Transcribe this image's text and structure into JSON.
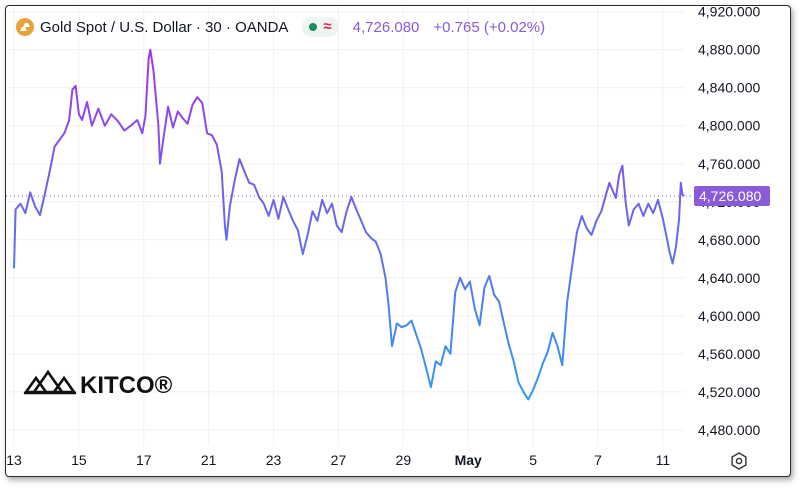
{
  "legend": {
    "symbol_title": "Gold Spot / U.S. Dollar · 30 · OANDA",
    "last_price": "4,726.080",
    "change": "+0.765 (+0.02%)"
  },
  "icons": {
    "symbol": "gold-bars-icon",
    "market_open": "green-dot-icon",
    "delayed": "wave-icon",
    "settings": "gear-icon"
  },
  "branding": {
    "logo_text": "KITCO®"
  },
  "chart_data": {
    "type": "line",
    "symbol": "Gold Spot / U.S. Dollar",
    "interval": "30",
    "y_axis": {
      "position": "right",
      "ticks": [
        "4,480.000",
        "4,520.000",
        "4,560.000",
        "4,600.000",
        "4,640.000",
        "4,680.000",
        "4,720.000",
        "4,760.000",
        "4,800.000",
        "4,840.000",
        "4,880.000",
        "4,920.000"
      ],
      "range": [
        4463,
        4926
      ]
    },
    "x_axis": {
      "ticks": [
        {
          "label": "13",
          "t": 0
        },
        {
          "label": "15",
          "t": 2
        },
        {
          "label": "17",
          "t": 4
        },
        {
          "label": "21",
          "t": 6
        },
        {
          "label": "23",
          "t": 8
        },
        {
          "label": "27",
          "t": 10
        },
        {
          "label": "29",
          "t": 12
        },
        {
          "label": "May",
          "t": 14
        },
        {
          "label": "5",
          "t": 16
        },
        {
          "label": "7",
          "t": 18
        },
        {
          "label": "11",
          "t": 20
        }
      ],
      "range": [
        0,
        20.65
      ]
    },
    "grid": true,
    "price_line": {
      "value": 4726.08,
      "label": "4,726.080"
    },
    "line_colors": {
      "high": "#a335e8",
      "low": "#2a9df4",
      "low_value": 4510,
      "high_value": 4880
    },
    "series": [
      {
        "points": [
          [
            0.0,
            4650
          ],
          [
            0.05,
            4712
          ],
          [
            0.2,
            4718
          ],
          [
            0.35,
            4708
          ],
          [
            0.5,
            4730
          ],
          [
            0.65,
            4715
          ],
          [
            0.8,
            4706
          ],
          [
            0.95,
            4728
          ],
          [
            1.1,
            4752
          ],
          [
            1.25,
            4778
          ],
          [
            1.4,
            4785
          ],
          [
            1.55,
            4792
          ],
          [
            1.7,
            4806
          ],
          [
            1.8,
            4838
          ],
          [
            1.9,
            4842
          ],
          [
            2.0,
            4812
          ],
          [
            2.1,
            4806
          ],
          [
            2.25,
            4825
          ],
          [
            2.4,
            4800
          ],
          [
            2.6,
            4818
          ],
          [
            2.8,
            4800
          ],
          [
            3.0,
            4812
          ],
          [
            3.2,
            4805
          ],
          [
            3.4,
            4795
          ],
          [
            3.6,
            4800
          ],
          [
            3.8,
            4806
          ],
          [
            3.95,
            4792
          ],
          [
            4.05,
            4810
          ],
          [
            4.15,
            4870
          ],
          [
            4.2,
            4880
          ],
          [
            4.3,
            4858
          ],
          [
            4.45,
            4800
          ],
          [
            4.5,
            4760
          ],
          [
            4.6,
            4785
          ],
          [
            4.75,
            4820
          ],
          [
            4.9,
            4798
          ],
          [
            5.05,
            4815
          ],
          [
            5.2,
            4808
          ],
          [
            5.35,
            4802
          ],
          [
            5.5,
            4822
          ],
          [
            5.65,
            4830
          ],
          [
            5.8,
            4824
          ],
          [
            5.95,
            4792
          ],
          [
            6.1,
            4790
          ],
          [
            6.25,
            4780
          ],
          [
            6.4,
            4752
          ],
          [
            6.5,
            4695
          ],
          [
            6.55,
            4680
          ],
          [
            6.65,
            4715
          ],
          [
            6.8,
            4742
          ],
          [
            6.95,
            4765
          ],
          [
            7.1,
            4752
          ],
          [
            7.25,
            4740
          ],
          [
            7.4,
            4738
          ],
          [
            7.55,
            4725
          ],
          [
            7.7,
            4718
          ],
          [
            7.85,
            4705
          ],
          [
            8.0,
            4722
          ],
          [
            8.15,
            4702
          ],
          [
            8.3,
            4725
          ],
          [
            8.45,
            4712
          ],
          [
            8.6,
            4700
          ],
          [
            8.75,
            4690
          ],
          [
            8.9,
            4665
          ],
          [
            9.05,
            4685
          ],
          [
            9.2,
            4710
          ],
          [
            9.35,
            4700
          ],
          [
            9.5,
            4722
          ],
          [
            9.65,
            4708
          ],
          [
            9.8,
            4718
          ],
          [
            9.95,
            4695
          ],
          [
            10.1,
            4688
          ],
          [
            10.25,
            4710
          ],
          [
            10.4,
            4725
          ],
          [
            10.55,
            4712
          ],
          [
            10.7,
            4700
          ],
          [
            10.85,
            4688
          ],
          [
            11.0,
            4682
          ],
          [
            11.15,
            4678
          ],
          [
            11.3,
            4665
          ],
          [
            11.45,
            4640
          ],
          [
            11.55,
            4610
          ],
          [
            11.65,
            4568
          ],
          [
            11.8,
            4592
          ],
          [
            11.95,
            4588
          ],
          [
            12.1,
            4590
          ],
          [
            12.25,
            4595
          ],
          [
            12.4,
            4580
          ],
          [
            12.55,
            4565
          ],
          [
            12.7,
            4545
          ],
          [
            12.85,
            4525
          ],
          [
            13.0,
            4552
          ],
          [
            13.15,
            4548
          ],
          [
            13.3,
            4568
          ],
          [
            13.45,
            4560
          ],
          [
            13.6,
            4625
          ],
          [
            13.75,
            4640
          ],
          [
            13.9,
            4628
          ],
          [
            14.05,
            4636
          ],
          [
            14.2,
            4608
          ],
          [
            14.35,
            4590
          ],
          [
            14.5,
            4630
          ],
          [
            14.65,
            4642
          ],
          [
            14.8,
            4622
          ],
          [
            14.95,
            4615
          ],
          [
            15.1,
            4592
          ],
          [
            15.25,
            4570
          ],
          [
            15.4,
            4552
          ],
          [
            15.55,
            4530
          ],
          [
            15.7,
            4520
          ],
          [
            15.85,
            4512
          ],
          [
            16.0,
            4522
          ],
          [
            16.15,
            4535
          ],
          [
            16.3,
            4550
          ],
          [
            16.45,
            4562
          ],
          [
            16.6,
            4582
          ],
          [
            16.75,
            4568
          ],
          [
            16.9,
            4548
          ],
          [
            17.05,
            4615
          ],
          [
            17.2,
            4652
          ],
          [
            17.35,
            4688
          ],
          [
            17.5,
            4705
          ],
          [
            17.65,
            4692
          ],
          [
            17.8,
            4685
          ],
          [
            17.95,
            4700
          ],
          [
            18.1,
            4710
          ],
          [
            18.25,
            4728
          ],
          [
            18.35,
            4740
          ],
          [
            18.45,
            4732
          ],
          [
            18.55,
            4724
          ],
          [
            18.65,
            4748
          ],
          [
            18.75,
            4758
          ],
          [
            18.85,
            4720
          ],
          [
            18.95,
            4695
          ],
          [
            19.1,
            4712
          ],
          [
            19.25,
            4718
          ],
          [
            19.4,
            4705
          ],
          [
            19.55,
            4718
          ],
          [
            19.7,
            4708
          ],
          [
            19.85,
            4722
          ],
          [
            20.0,
            4702
          ],
          [
            20.1,
            4685
          ],
          [
            20.2,
            4668
          ],
          [
            20.3,
            4655
          ],
          [
            20.4,
            4672
          ],
          [
            20.5,
            4702
          ],
          [
            20.55,
            4740
          ],
          [
            20.6,
            4728
          ],
          [
            20.65,
            4726
          ]
        ]
      }
    ]
  }
}
